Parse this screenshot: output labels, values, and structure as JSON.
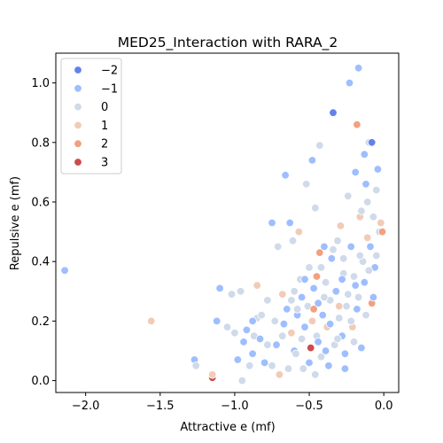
{
  "chart_data": {
    "type": "scatter",
    "title": "MED25_Interaction with RARA_2",
    "xlabel": "Attractive e (mf)",
    "ylabel": "Repulsive e (mf)",
    "xlim": [
      -2.2,
      0.1
    ],
    "ylim": [
      -0.04,
      1.1
    ],
    "xticks": [
      -2.0,
      -1.5,
      -1.0,
      -0.5,
      0.0
    ],
    "xtick_labels": [
      "−2.0",
      "−1.5",
      "−1.0",
      "−0.5",
      "0.0"
    ],
    "yticks": [
      0.0,
      0.2,
      0.4,
      0.6,
      0.8,
      1.0
    ],
    "ytick_labels": [
      "0.0",
      "0.2",
      "0.4",
      "0.6",
      "0.8",
      "1.0"
    ],
    "grid": false,
    "legend": {
      "placement": "top-left",
      "entries": [
        {
          "label": "−2",
          "hue": -2,
          "color": "#6282ea"
        },
        {
          "label": "−1",
          "hue": -1,
          "color": "#9ebeff"
        },
        {
          "label": "0",
          "hue": 0,
          "color": "#cfdaea"
        },
        {
          "label": "1",
          "hue": 1,
          "color": "#f2cbb7"
        },
        {
          "label": "2",
          "hue": 2,
          "color": "#f3a081"
        },
        {
          "label": "3",
          "hue": 3,
          "color": "#cc4b4b"
        }
      ]
    },
    "points": [
      {
        "x": -2.14,
        "y": 0.37,
        "hue": -1
      },
      {
        "x": -1.56,
        "y": 0.2,
        "hue": 1
      },
      {
        "x": -1.27,
        "y": 0.07,
        "hue": -1
      },
      {
        "x": -1.26,
        "y": 0.05,
        "hue": 0
      },
      {
        "x": -1.15,
        "y": 0.01,
        "hue": 3
      },
      {
        "x": -1.15,
        "y": 0.02,
        "hue": 1
      },
      {
        "x": -1.12,
        "y": 0.2,
        "hue": -1
      },
      {
        "x": -1.1,
        "y": 0.31,
        "hue": -1
      },
      {
        "x": -1.05,
        "y": 0.18,
        "hue": 0
      },
      {
        "x": -1.02,
        "y": 0.29,
        "hue": 0
      },
      {
        "x": -1.0,
        "y": 0.16,
        "hue": 0
      },
      {
        "x": -0.98,
        "y": 0.07,
        "hue": -1
      },
      {
        "x": -0.96,
        "y": 0.3,
        "hue": 0
      },
      {
        "x": -0.95,
        "y": 0.0,
        "hue": 0
      },
      {
        "x": -0.92,
        "y": 0.17,
        "hue": -1
      },
      {
        "x": -0.9,
        "y": 0.05,
        "hue": 0
      },
      {
        "x": -0.88,
        "y": 0.09,
        "hue": -1
      },
      {
        "x": -0.87,
        "y": 0.15,
        "hue": 0
      },
      {
        "x": -0.85,
        "y": 0.21,
        "hue": 0
      },
      {
        "x": -0.85,
        "y": 0.32,
        "hue": 1
      },
      {
        "x": -0.83,
        "y": 0.14,
        "hue": -1
      },
      {
        "x": -0.8,
        "y": 0.06,
        "hue": -1
      },
      {
        "x": -0.78,
        "y": 0.27,
        "hue": 0
      },
      {
        "x": -0.75,
        "y": 0.05,
        "hue": 0
      },
      {
        "x": -0.75,
        "y": 0.53,
        "hue": -1
      },
      {
        "x": -0.73,
        "y": 0.2,
        "hue": 0
      },
      {
        "x": -0.72,
        "y": 0.12,
        "hue": -1
      },
      {
        "x": -0.71,
        "y": 0.45,
        "hue": 0
      },
      {
        "x": -0.7,
        "y": 0.02,
        "hue": 1
      },
      {
        "x": -0.68,
        "y": 0.15,
        "hue": 0
      },
      {
        "x": -0.68,
        "y": 0.29,
        "hue": 1
      },
      {
        "x": -0.66,
        "y": 0.69,
        "hue": -1
      },
      {
        "x": -0.65,
        "y": 0.24,
        "hue": -1
      },
      {
        "x": -0.64,
        "y": 0.04,
        "hue": 0
      },
      {
        "x": -0.63,
        "y": 0.53,
        "hue": -1
      },
      {
        "x": -0.62,
        "y": 0.16,
        "hue": 1
      },
      {
        "x": -0.61,
        "y": 0.47,
        "hue": 0
      },
      {
        "x": -0.6,
        "y": 0.3,
        "hue": 0
      },
      {
        "x": -0.6,
        "y": 0.1,
        "hue": -1
      },
      {
        "x": -0.58,
        "y": 0.22,
        "hue": -1
      },
      {
        "x": -0.57,
        "y": 0.5,
        "hue": 1
      },
      {
        "x": -0.56,
        "y": 0.34,
        "hue": 0
      },
      {
        "x": -0.55,
        "y": 0.14,
        "hue": 0
      },
      {
        "x": -0.55,
        "y": 0.28,
        "hue": -1
      },
      {
        "x": -0.54,
        "y": 0.04,
        "hue": 0
      },
      {
        "x": -0.53,
        "y": 0.18,
        "hue": -1
      },
      {
        "x": -0.52,
        "y": 0.66,
        "hue": 0
      },
      {
        "x": -0.51,
        "y": 0.25,
        "hue": 0
      },
      {
        "x": -0.5,
        "y": 0.06,
        "hue": -1
      },
      {
        "x": -0.5,
        "y": 0.38,
        "hue": 0
      },
      {
        "x": -0.49,
        "y": 0.11,
        "hue": 3
      },
      {
        "x": -0.48,
        "y": 0.2,
        "hue": 1
      },
      {
        "x": -0.48,
        "y": 0.74,
        "hue": -1
      },
      {
        "x": -0.47,
        "y": 0.31,
        "hue": -1
      },
      {
        "x": -0.46,
        "y": 0.58,
        "hue": 0
      },
      {
        "x": -0.45,
        "y": 0.35,
        "hue": 2
      },
      {
        "x": -0.45,
        "y": 0.15,
        "hue": 0
      },
      {
        "x": -0.44,
        "y": 0.26,
        "hue": -1
      },
      {
        "x": -0.43,
        "y": 0.43,
        "hue": 2
      },
      {
        "x": -0.43,
        "y": 0.79,
        "hue": 0
      },
      {
        "x": -0.42,
        "y": 0.08,
        "hue": 0
      },
      {
        "x": -0.41,
        "y": 0.22,
        "hue": -1
      },
      {
        "x": -0.4,
        "y": 0.45,
        "hue": -1
      },
      {
        "x": -0.39,
        "y": 0.33,
        "hue": 0
      },
      {
        "x": -0.38,
        "y": 0.18,
        "hue": 1
      },
      {
        "x": -0.37,
        "y": 0.05,
        "hue": -1
      },
      {
        "x": -0.36,
        "y": 0.27,
        "hue": 0
      },
      {
        "x": -0.35,
        "y": 0.41,
        "hue": -1
      },
      {
        "x": -0.34,
        "y": 0.9,
        "hue": -2
      },
      {
        "x": -0.33,
        "y": 0.12,
        "hue": 0
      },
      {
        "x": -0.32,
        "y": 0.3,
        "hue": -1
      },
      {
        "x": -0.31,
        "y": 0.47,
        "hue": 0
      },
      {
        "x": -0.3,
        "y": 0.21,
        "hue": 0
      },
      {
        "x": -0.29,
        "y": 0.52,
        "hue": 1
      },
      {
        "x": -0.28,
        "y": 0.15,
        "hue": -1
      },
      {
        "x": -0.27,
        "y": 0.36,
        "hue": 0
      },
      {
        "x": -0.26,
        "y": 0.04,
        "hue": -1
      },
      {
        "x": -0.25,
        "y": 0.25,
        "hue": 0
      },
      {
        "x": -0.24,
        "y": 0.62,
        "hue": 0
      },
      {
        "x": -0.23,
        "y": 1.0,
        "hue": -1
      },
      {
        "x": -0.22,
        "y": 0.45,
        "hue": -1
      },
      {
        "x": -0.21,
        "y": 0.18,
        "hue": 1
      },
      {
        "x": -0.2,
        "y": 0.35,
        "hue": 0
      },
      {
        "x": -0.19,
        "y": 0.7,
        "hue": -1
      },
      {
        "x": -0.18,
        "y": 0.86,
        "hue": 2
      },
      {
        "x": -0.17,
        "y": 0.28,
        "hue": 0
      },
      {
        "x": -0.17,
        "y": 1.05,
        "hue": -1
      },
      {
        "x": -0.16,
        "y": 0.55,
        "hue": 1
      },
      {
        "x": -0.15,
        "y": 0.11,
        "hue": -1
      },
      {
        "x": -0.14,
        "y": 0.4,
        "hue": 0
      },
      {
        "x": -0.13,
        "y": 0.76,
        "hue": -1
      },
      {
        "x": -0.12,
        "y": 0.22,
        "hue": 0
      },
      {
        "x": -0.11,
        "y": 0.6,
        "hue": 0
      },
      {
        "x": -0.1,
        "y": 0.8,
        "hue": 0
      },
      {
        "x": -0.09,
        "y": 0.45,
        "hue": -1
      },
      {
        "x": -0.08,
        "y": 0.26,
        "hue": 2
      },
      {
        "x": -0.08,
        "y": 0.8,
        "hue": -2
      },
      {
        "x": -0.07,
        "y": 0.55,
        "hue": 0
      },
      {
        "x": -0.06,
        "y": 0.38,
        "hue": -1
      },
      {
        "x": -0.05,
        "y": 0.64,
        "hue": 0
      },
      {
        "x": -0.04,
        "y": 0.71,
        "hue": -1
      },
      {
        "x": -0.03,
        "y": 0.5,
        "hue": 0
      },
      {
        "x": -0.02,
        "y": 0.53,
        "hue": 1
      },
      {
        "x": -0.01,
        "y": 0.5,
        "hue": 2
      },
      {
        "x": -0.62,
        "y": 0.27,
        "hue": 0
      },
      {
        "x": -0.58,
        "y": 0.24,
        "hue": 0
      },
      {
        "x": -0.44,
        "y": 0.13,
        "hue": -1
      },
      {
        "x": -0.4,
        "y": 0.28,
        "hue": 0
      },
      {
        "x": -0.36,
        "y": 0.19,
        "hue": -1
      },
      {
        "x": -0.3,
        "y": 0.25,
        "hue": 1
      },
      {
        "x": -0.27,
        "y": 0.41,
        "hue": 0
      },
      {
        "x": -0.22,
        "y": 0.2,
        "hue": 0
      },
      {
        "x": -0.19,
        "y": 0.32,
        "hue": -1
      },
      {
        "x": -0.16,
        "y": 0.42,
        "hue": 0
      },
      {
        "x": -0.13,
        "y": 0.33,
        "hue": -1
      },
      {
        "x": -0.11,
        "y": 0.48,
        "hue": 1
      },
      {
        "x": -0.1,
        "y": 0.37,
        "hue": 0
      },
      {
        "x": -0.07,
        "y": 0.28,
        "hue": -1
      },
      {
        "x": -0.05,
        "y": 0.42,
        "hue": 0
      },
      {
        "x": -0.53,
        "y": 0.34,
        "hue": -1
      },
      {
        "x": -0.47,
        "y": 0.24,
        "hue": 2
      },
      {
        "x": -0.42,
        "y": 0.38,
        "hue": 0
      },
      {
        "x": -0.34,
        "y": 0.44,
        "hue": 0
      },
      {
        "x": -0.28,
        "y": 0.34,
        "hue": -1
      },
      {
        "x": -0.24,
        "y": 0.29,
        "hue": 0
      },
      {
        "x": -0.18,
        "y": 0.24,
        "hue": -1
      },
      {
        "x": -0.15,
        "y": 0.57,
        "hue": 0
      },
      {
        "x": -0.12,
        "y": 0.66,
        "hue": -1
      },
      {
        "x": -0.67,
        "y": 0.19,
        "hue": -1
      },
      {
        "x": -0.78,
        "y": 0.12,
        "hue": 0
      },
      {
        "x": -0.82,
        "y": 0.22,
        "hue": 0
      },
      {
        "x": -0.88,
        "y": 0.2,
        "hue": -1
      },
      {
        "x": -0.94,
        "y": 0.13,
        "hue": -1
      },
      {
        "x": -0.59,
        "y": 0.09,
        "hue": 0
      },
      {
        "x": -0.46,
        "y": 0.02,
        "hue": 0
      },
      {
        "x": -0.39,
        "y": 0.1,
        "hue": -1
      },
      {
        "x": -0.31,
        "y": 0.14,
        "hue": 0
      },
      {
        "x": -0.26,
        "y": 0.09,
        "hue": -1
      },
      {
        "x": -0.2,
        "y": 0.13,
        "hue": 0
      }
    ]
  }
}
